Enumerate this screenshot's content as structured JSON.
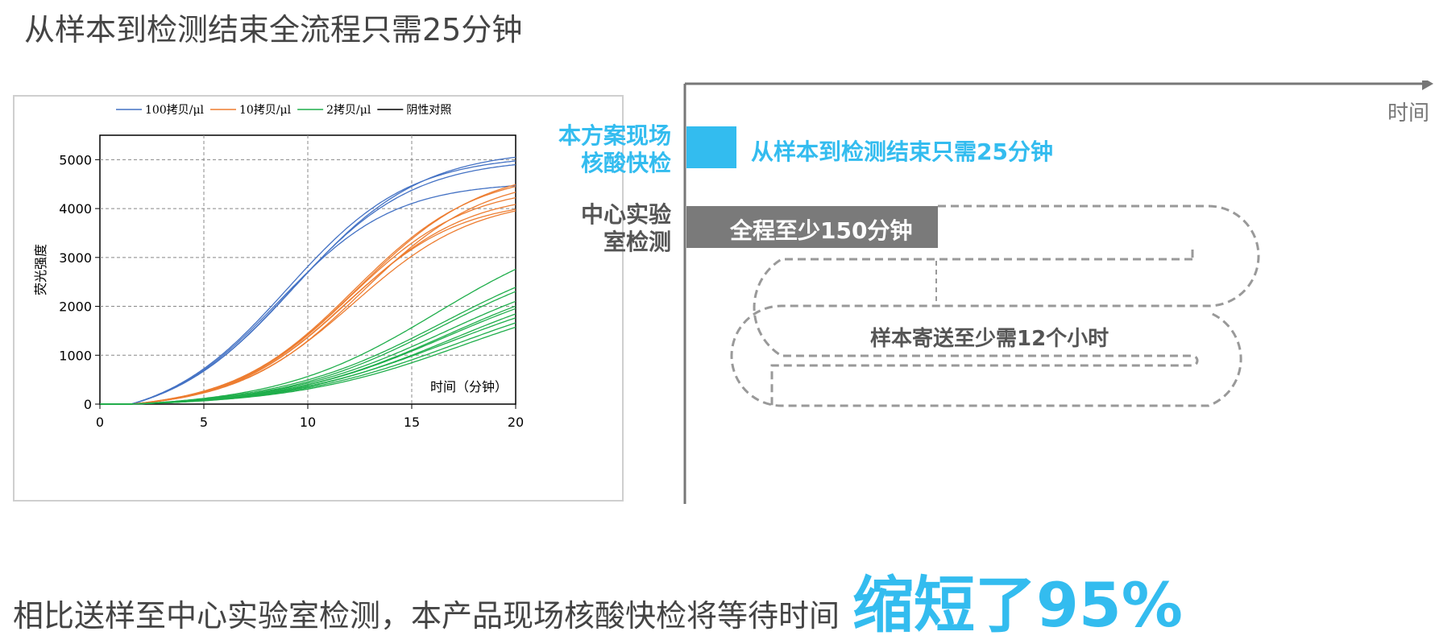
{
  "headline": "从样本到检测结束全流程只需25分钟",
  "chart_data": {
    "type": "line",
    "xlabel": "时间（分钟）",
    "ylabel": "荧光强度",
    "xlim": [
      0,
      20
    ],
    "ylim": [
      0,
      5500
    ],
    "xticks": [
      0,
      5,
      10,
      15,
      20
    ],
    "yticks": [
      0,
      1000,
      2000,
      3000,
      4000,
      5000
    ],
    "grid": true,
    "legend_position": "top",
    "series": [
      {
        "name": "100拷贝/μl",
        "color": "#4472c4",
        "curves": [
          {
            "plateau": 5500,
            "midpoint": 9.0,
            "slope": 0.34
          },
          {
            "plateau": 5400,
            "midpoint": 9.2,
            "slope": 0.34
          },
          {
            "plateau": 5600,
            "midpoint": 9.4,
            "slope": 0.33
          },
          {
            "plateau": 4900,
            "midpoint": 8.6,
            "slope": 0.36
          }
        ]
      },
      {
        "name": "10拷贝/μl",
        "color": "#ed7d31",
        "curves": [
          {
            "plateau": 5000,
            "midpoint": 12.4,
            "slope": 0.33
          },
          {
            "plateau": 4900,
            "midpoint": 12.2,
            "slope": 0.34
          },
          {
            "plateau": 4600,
            "midpoint": 12.0,
            "slope": 0.35
          },
          {
            "plateau": 4450,
            "midpoint": 12.0,
            "slope": 0.35
          },
          {
            "plateau": 4350,
            "midpoint": 12.2,
            "slope": 0.34
          },
          {
            "plateau": 4300,
            "midpoint": 11.8,
            "slope": 0.36
          },
          {
            "plateau": 4800,
            "midpoint": 12.6,
            "slope": 0.34
          }
        ]
      },
      {
        "name": "2拷贝/μl",
        "color": "#1fae4b",
        "curves": [
          {
            "plateau": 3900,
            "midpoint": 16.2,
            "slope": 0.26
          },
          {
            "plateau": 3500,
            "midpoint": 16.5,
            "slope": 0.25
          },
          {
            "plateau": 3300,
            "midpoint": 16.4,
            "slope": 0.26
          },
          {
            "plateau": 3100,
            "midpoint": 16.6,
            "slope": 0.25
          },
          {
            "plateau": 3000,
            "midpoint": 16.8,
            "slope": 0.25
          },
          {
            "plateau": 2900,
            "midpoint": 16.7,
            "slope": 0.25
          },
          {
            "plateau": 2800,
            "midpoint": 17.0,
            "slope": 0.25
          },
          {
            "plateau": 2700,
            "midpoint": 16.9,
            "slope": 0.24
          },
          {
            "plateau": 2600,
            "midpoint": 17.2,
            "slope": 0.24
          },
          {
            "plateau": 2500,
            "midpoint": 17.4,
            "slope": 0.24
          }
        ]
      },
      {
        "name": "阴性对照",
        "color": "#000000",
        "curves": []
      }
    ]
  },
  "timeline": {
    "axis_label": "时间",
    "rapid": {
      "label_line1": "本方案现场",
      "label_line2": "核酸快检",
      "bar_text": "从样本到检测结束只需25分钟",
      "color": "#33bcef",
      "minutes": 25
    },
    "central": {
      "label_line1": "中心实验",
      "label_line2": "室检测",
      "bar_text": "全程至少150分钟",
      "color": "#7a7a7a",
      "minutes": 150
    },
    "shipping_text": "样本寄送至少需12个小时",
    "dash_color": "#999999"
  },
  "footer": {
    "text": "相比送样至中心实验室检测，本产品现场核酸快检将等待时间",
    "highlight": "缩短了95%"
  }
}
